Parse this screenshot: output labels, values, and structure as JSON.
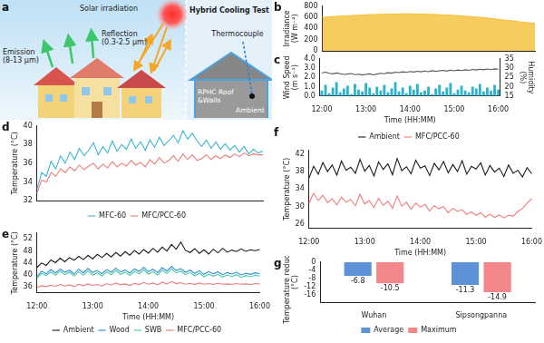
{
  "diagram": {
    "panel": "a",
    "solar": "Solar irradiation",
    "emission": [
      "Emission",
      "(8-13 μm)"
    ],
    "reflection": [
      "Reflection",
      "(0.3-2.5 μm)"
    ],
    "test_title": "Hybrid Cooling Test",
    "thermocouple": "Thermocouple",
    "roof": [
      "RPHC Roof",
      "&Walls"
    ],
    "ambient": "Ambient"
  },
  "chart_data": [
    {
      "panel": "b",
      "type": "area",
      "grid": false,
      "tick_labels": "y",
      "categories": [
        "12:00",
        null,
        null,
        null,
        null,
        null,
        null,
        null,
        null,
        null,
        null,
        null,
        "13:00",
        null,
        null,
        null,
        null,
        null,
        null,
        null,
        null,
        null,
        null,
        null,
        "14:00",
        null,
        null,
        null,
        null,
        null,
        null,
        null,
        null,
        null,
        null,
        null,
        "15:00",
        null,
        null,
        null,
        null,
        null,
        null,
        null,
        null,
        null,
        null,
        null,
        "16:00"
      ],
      "y_label": "Irradiance (W m⁻²)",
      "ylim": [
        0,
        800
      ],
      "yticks": [
        0,
        200,
        400,
        600,
        800
      ],
      "color": "#f5c343",
      "values": [
        600,
        606,
        612,
        617,
        622,
        627,
        631,
        635,
        639,
        642,
        645,
        648,
        651,
        653,
        655,
        657,
        658,
        659,
        660,
        660,
        660,
        659,
        658,
        657,
        655,
        652,
        649,
        646,
        642,
        638,
        633,
        628,
        622,
        616,
        610,
        603,
        596,
        588,
        580,
        571,
        562,
        553,
        544,
        535,
        526,
        517,
        508,
        499,
        490
      ]
    },
    {
      "panel": "c",
      "type": "bar",
      "grid": false,
      "categories": [
        "12:00",
        null,
        null,
        null,
        null,
        null,
        null,
        null,
        null,
        null,
        null,
        null,
        "13:00",
        null,
        null,
        null,
        null,
        null,
        null,
        null,
        null,
        null,
        null,
        null,
        "14:00",
        null,
        null,
        null,
        null,
        null,
        null,
        null,
        null,
        null,
        null,
        null,
        "15:00",
        null,
        null,
        null,
        null,
        null,
        null,
        null,
        null,
        null,
        null,
        null,
        "16:00"
      ],
      "x_label": "Time (HH:MM)",
      "y_label": "Wind Speed (m s⁻¹)",
      "y2_label": "Humidity (%)",
      "ylim": [
        0,
        4
      ],
      "yticks": [
        {
          "value": 0,
          "label": "0.0"
        },
        {
          "value": 1,
          "label": "1.0"
        },
        {
          "value": 2,
          "label": "2.0"
        },
        {
          "value": 3,
          "label": "3.0"
        },
        {
          "value": 4,
          "label": "4.0"
        }
      ],
      "y2lim": [
        15,
        35
      ],
      "y2ticks": [
        15,
        20,
        25,
        30,
        35
      ],
      "series": [
        {
          "type": "bar",
          "color": "#2bb3cc",
          "values": [
            0.6,
            1.2,
            0.3,
            0.9,
            1.5,
            0.4,
            0.8,
            1.1,
            0.2,
            1.3,
            0.7,
            0.5,
            1.4,
            0.9,
            0.3,
            1.0,
            0.6,
            1.2,
            0.4,
            0.8,
            1.5,
            0.5,
            0.9,
            0.3,
            1.1,
            0.7,
            1.3,
            0.4,
            0.6,
            1.0,
            0.2,
            0.8,
            1.2,
            0.5,
            0.9,
            1.4,
            0.3,
            0.7,
            1.1,
            0.6,
            0.4,
            1.0,
            0.8,
            1.3,
            0.5,
            0.9,
            0.6,
            1.2,
            0.7
          ]
        },
        {
          "type": "line",
          "axis": "y2",
          "color": "#555555",
          "values": [
            27.5,
            27.8,
            27.2,
            26.9,
            27.4,
            27.0,
            26.6,
            26.8,
            27.1,
            26.5,
            26.7,
            26.3,
            26.6,
            26.9,
            26.4,
            26.8,
            27.2,
            27.0,
            27.5,
            27.3,
            27.8,
            27.6,
            28.0,
            27.7,
            28.2,
            27.9,
            28.3,
            28.0,
            28.4,
            28.1,
            28.6,
            28.3,
            28.5,
            28.8,
            28.4,
            28.9,
            28.6,
            29.0,
            28.7,
            29.1,
            28.8,
            29.3,
            29.0,
            29.4,
            29.1,
            29.5,
            29.2,
            29.6,
            29.4
          ]
        }
      ]
    },
    {
      "panel": "d",
      "type": "line",
      "grid": false,
      "tick_labels": "y",
      "legend": "bottom",
      "categories": [
        "12:00",
        null,
        null,
        null,
        null,
        null,
        null,
        null,
        null,
        null,
        null,
        null,
        "13:00",
        null,
        null,
        null,
        null,
        null,
        null,
        null,
        null,
        null,
        null,
        null,
        "14:00",
        null,
        null,
        null,
        null,
        null,
        null,
        null,
        null,
        null,
        null,
        null,
        "15:00",
        null,
        null,
        null,
        null,
        null,
        null,
        null,
        null,
        null,
        null,
        null,
        "16:00"
      ],
      "y_label": "Temperature (°C)",
      "ylim": [
        32,
        40
      ],
      "yticks": [
        32,
        34,
        36,
        38,
        40
      ],
      "series": [
        {
          "name": "MFC-60",
          "color": "#39b7cf",
          "values": [
            33.2,
            35.0,
            34.6,
            36.2,
            35.4,
            36.8,
            36.0,
            37.2,
            36.4,
            37.6,
            36.8,
            37.4,
            38.2,
            36.9,
            37.8,
            37.1,
            38.4,
            37.3,
            38.0,
            37.5,
            38.6,
            37.6,
            38.3,
            37.4,
            38.5,
            37.7,
            38.8,
            37.9,
            38.4,
            39.0,
            38.2,
            39.5,
            38.6,
            39.2,
            38.4,
            37.8,
            38.5,
            37.6,
            38.3,
            37.5,
            38.1,
            37.4,
            37.9,
            37.2,
            37.8,
            37.0,
            37.5,
            37.1,
            37.3
          ]
        },
        {
          "name": "MFC/PCC-60",
          "color": "#ef7b7b",
          "values": [
            32.8,
            34.2,
            34.0,
            35.0,
            34.6,
            35.4,
            35.0,
            35.6,
            35.2,
            35.8,
            35.3,
            35.7,
            36.0,
            35.4,
            35.9,
            35.5,
            36.2,
            35.6,
            36.0,
            35.7,
            36.3,
            35.8,
            36.1,
            35.6,
            36.4,
            35.9,
            36.6,
            36.0,
            36.3,
            36.8,
            36.2,
            37.0,
            36.4,
            36.9,
            36.3,
            36.5,
            36.9,
            36.4,
            36.8,
            36.5,
            36.9,
            36.6,
            37.0,
            36.7,
            37.1,
            36.8,
            37.0,
            36.9,
            36.9
          ]
        }
      ]
    },
    {
      "panel": "e",
      "type": "line",
      "grid": false,
      "legend": "bottom",
      "categories": [
        "12:00",
        null,
        null,
        null,
        null,
        null,
        null,
        null,
        null,
        null,
        null,
        null,
        "13:00",
        null,
        null,
        null,
        null,
        null,
        null,
        null,
        null,
        null,
        null,
        null,
        "14:00",
        null,
        null,
        null,
        null,
        null,
        null,
        null,
        null,
        null,
        null,
        null,
        "15:00",
        null,
        null,
        null,
        null,
        null,
        null,
        null,
        null,
        null,
        null,
        null,
        "16:00"
      ],
      "x_label": "Time (HH:MM)",
      "y_label": "Temperature (°C)",
      "ylim": [
        34,
        54
      ],
      "yticks": [
        36,
        40,
        44,
        48,
        52
      ],
      "series": [
        {
          "name": "Ambient",
          "color": "#1a1a1a",
          "values": [
            42.5,
            44.0,
            43.2,
            45.0,
            44.1,
            45.6,
            44.4,
            45.8,
            44.9,
            46.2,
            45.1,
            46.5,
            45.4,
            46.9,
            45.8,
            47.2,
            46.0,
            47.5,
            46.3,
            47.8,
            46.6,
            48.2,
            47.0,
            48.5,
            47.3,
            48.9,
            47.6,
            49.3,
            48.0,
            50.2,
            48.6,
            51.0,
            48.2,
            47.5,
            48.8,
            47.2,
            48.4,
            47.0,
            48.6,
            47.4,
            48.9,
            47.6,
            48.3,
            47.8,
            48.7,
            47.9,
            48.4,
            48.1,
            48.5
          ]
        },
        {
          "name": "Wood",
          "color": "#2f8fd6",
          "values": [
            39.5,
            41.2,
            40.4,
            41.8,
            40.6,
            42.0,
            40.9,
            41.6,
            40.3,
            41.9,
            40.7,
            42.2,
            40.8,
            41.5,
            40.4,
            41.8,
            40.9,
            42.3,
            41.0,
            41.7,
            40.6,
            42.0,
            41.2,
            42.6,
            41.1,
            41.9,
            40.8,
            42.4,
            41.3,
            42.8,
            41.5,
            42.1,
            40.9,
            41.6,
            40.5,
            41.4,
            40.2,
            41.1,
            40.4,
            41.0,
            40.1,
            40.8,
            40.3,
            40.9,
            40.0,
            40.6,
            40.2,
            40.7,
            40.4
          ]
        },
        {
          "name": "SWB",
          "color": "#47c9a6",
          "values": [
            38.9,
            40.5,
            39.8,
            41.0,
            39.9,
            41.3,
            40.1,
            40.9,
            39.6,
            41.1,
            39.9,
            41.4,
            40.0,
            40.7,
            39.6,
            41.0,
            40.1,
            41.5,
            40.2,
            40.9,
            39.8,
            41.2,
            40.4,
            41.8,
            40.3,
            41.1,
            40.0,
            41.6,
            40.5,
            42.0,
            40.7,
            41.3,
            40.1,
            40.8,
            39.7,
            40.6,
            39.4,
            40.3,
            39.6,
            40.2,
            39.3,
            40.0,
            39.5,
            40.1,
            39.2,
            39.8,
            39.4,
            39.9,
            39.6
          ]
        },
        {
          "name": "MFC/PCC-60",
          "color": "#ef7b7b",
          "values": [
            35.8,
            36.4,
            36.1,
            36.6,
            36.2,
            36.8,
            36.3,
            36.7,
            36.1,
            36.9,
            36.4,
            37.0,
            36.5,
            36.8,
            36.3,
            37.1,
            36.6,
            37.3,
            36.7,
            37.0,
            36.5,
            37.2,
            36.8,
            37.5,
            36.9,
            37.3,
            36.7,
            37.6,
            37.0,
            37.8,
            37.1,
            37.4,
            36.9,
            37.2,
            36.8,
            37.3,
            36.9,
            37.1,
            36.8,
            37.2,
            36.9,
            37.0,
            36.8,
            37.1,
            36.9,
            37.0,
            36.8,
            37.1,
            37.0
          ]
        }
      ]
    },
    {
      "panel": "f",
      "type": "line",
      "grid": false,
      "legend": "top",
      "categories": [
        "12:00",
        null,
        null,
        null,
        null,
        null,
        null,
        null,
        null,
        null,
        null,
        null,
        "13:00",
        null,
        null,
        null,
        null,
        null,
        null,
        null,
        null,
        null,
        null,
        null,
        "14:00",
        null,
        null,
        null,
        null,
        null,
        null,
        null,
        null,
        null,
        null,
        null,
        "15:00",
        null,
        null,
        null,
        null,
        null,
        null,
        null,
        null,
        null,
        null,
        null,
        "16:00"
      ],
      "x_label": "Time (HH:MM)",
      "y_label": "Temperature (°C)",
      "ylim": [
        25,
        43
      ],
      "yticks": [
        26,
        30,
        34,
        38,
        42
      ],
      "series": [
        {
          "name": "Ambient",
          "color": "#1a1a1a",
          "values": [
            36.5,
            39.2,
            37.4,
            40.1,
            38.0,
            39.5,
            37.2,
            40.4,
            38.3,
            39.0,
            37.6,
            40.8,
            38.1,
            39.4,
            37.0,
            40.2,
            38.5,
            39.8,
            37.3,
            41.0,
            38.2,
            39.1,
            37.5,
            40.6,
            38.8,
            39.3,
            37.1,
            39.9,
            38.4,
            40.3,
            37.7,
            39.6,
            38.0,
            40.5,
            37.4,
            39.2,
            38.6,
            40.0,
            37.2,
            39.4,
            37.9,
            38.8,
            36.9,
            39.5,
            37.6,
            38.3,
            36.8,
            38.9,
            37.5
          ]
        },
        {
          "name": "MFC/PCC-60",
          "color": "#ef7b7b",
          "values": [
            30.8,
            33.0,
            31.4,
            32.6,
            30.9,
            31.8,
            30.4,
            32.2,
            31.0,
            31.6,
            30.2,
            32.8,
            30.6,
            31.4,
            29.8,
            31.9,
            30.3,
            31.2,
            29.6,
            32.4,
            30.1,
            31.0,
            29.4,
            30.8,
            29.9,
            30.5,
            29.0,
            30.2,
            29.5,
            30.0,
            28.6,
            29.6,
            28.9,
            29.3,
            28.2,
            28.8,
            28.0,
            28.6,
            27.6,
            28.3,
            27.5,
            28.1,
            27.4,
            28.0,
            27.8,
            28.9,
            29.6,
            30.8,
            31.8
          ]
        }
      ]
    },
    {
      "panel": "g",
      "type": "bar",
      "grid": false,
      "legend": "bottom",
      "data_labels": true,
      "categories": [
        "Wuhan",
        "Sipsongpanna"
      ],
      "y_label": "Temperature reduction (°C)",
      "ylim": [
        -20,
        0
      ],
      "yticks": [
        -16,
        -12,
        -8,
        -4,
        0
      ],
      "series": [
        {
          "name": "Average",
          "color": "#5e92d6",
          "values": [
            -6.8,
            -11.3
          ]
        },
        {
          "name": "Maximum",
          "color": "#f2868a",
          "values": [
            -10.5,
            -14.9
          ]
        }
      ]
    }
  ]
}
